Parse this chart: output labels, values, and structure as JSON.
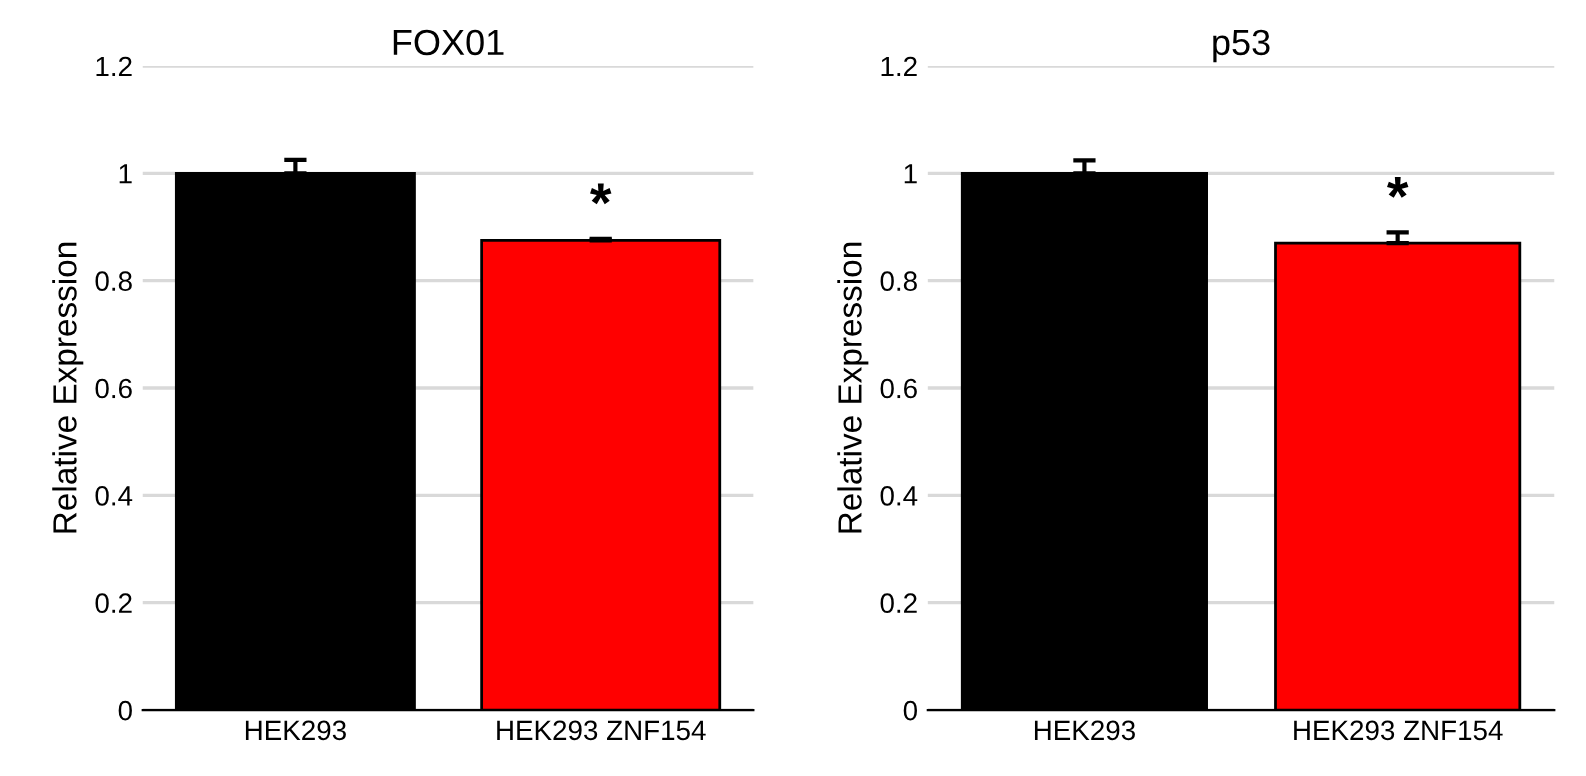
{
  "chart_data": [
    {
      "type": "bar",
      "title": "FOX01",
      "ylabel": "Relative Expression",
      "categories": [
        "HEK293",
        "HEK293 ZNF154"
      ],
      "values": [
        1.0,
        0.875
      ],
      "errors": [
        0.025,
        0.003
      ],
      "colors": [
        "#000000",
        "#ff0000"
      ],
      "ylim": [
        0,
        1.2
      ],
      "yticks": [
        0,
        0.2,
        0.4,
        0.6,
        0.8,
        1,
        1.2
      ],
      "grid": "y",
      "annotations": [
        {
          "text": "*",
          "x": "HEK293 ZNF154",
          "y": 0.878
        }
      ]
    },
    {
      "type": "bar",
      "title": "p53",
      "ylabel": "Relative Expression",
      "categories": [
        "HEK293",
        "HEK293 ZNF154"
      ],
      "values": [
        1.0,
        0.87
      ],
      "errors": [
        0.024,
        0.02
      ],
      "colors": [
        "#000000",
        "#ff0000"
      ],
      "ylim": [
        0,
        1.2
      ],
      "yticks": [
        0,
        0.2,
        0.4,
        0.6,
        0.8,
        1,
        1.2
      ],
      "grid": "y",
      "annotations": [
        {
          "text": "*",
          "x": "HEK293 ZNF154",
          "y": 0.89
        }
      ]
    }
  ]
}
